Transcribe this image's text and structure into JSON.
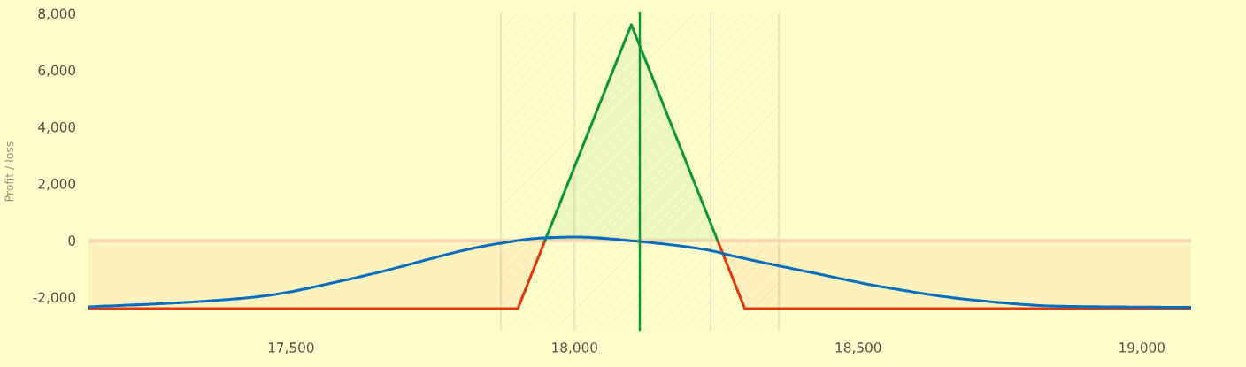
{
  "chart_data": {
    "type": "line",
    "ylabel": "Profit / loss",
    "xlim": [
      17143,
      19087
    ],
    "ylim": [
      -3150,
      8000
    ],
    "xticks": [
      {
        "value": 17500,
        "label": "17,500"
      },
      {
        "value": 18000,
        "label": "18,000"
      },
      {
        "value": 18500,
        "label": "18,500"
      },
      {
        "value": 19000,
        "label": "19,000"
      }
    ],
    "yticks": [
      {
        "value": -2000,
        "label": "-2,000"
      },
      {
        "value": 0,
        "label": "0"
      },
      {
        "value": 2000,
        "label": "2,000"
      },
      {
        "value": 4000,
        "label": "4,000"
      },
      {
        "value": 6000,
        "label": "6,000"
      },
      {
        "value": 8000,
        "label": "8,000"
      }
    ],
    "grid": false,
    "legend": false,
    "series": [
      {
        "type": "area",
        "color": "#e03a10",
        "x": [
          17143,
          17900,
          17948,
          18100,
          18252,
          18300,
          19087
        ],
        "values": [
          -2400,
          -2400,
          0,
          null,
          0,
          -2400,
          -2400
        ]
      },
      {
        "type": "area",
        "color": "#11963c",
        "x": [
          17948,
          18100,
          18252
        ],
        "values": [
          0,
          7600,
          0
        ]
      },
      {
        "color": "#0a6ebd",
        "x": [
          17143,
          17299,
          17377,
          17455,
          17595,
          17689,
          17736,
          17798,
          17860,
          17946,
          18001,
          18110,
          18235,
          18282,
          18422,
          18547,
          18703,
          18859,
          19087
        ],
        "values": [
          -2340,
          -2200,
          -2100,
          -1950,
          -1400,
          -950,
          -700,
          -380,
          -130,
          90,
          120,
          -30,
          -340,
          -560,
          -1150,
          -1650,
          -2100,
          -2320,
          -2360
        ]
      }
    ],
    "ref_lines": [
      {
        "axis": "y",
        "value": 0,
        "color": "#fadcb8"
      },
      {
        "axis": "x",
        "value": 17870,
        "color": "#f3dcbc"
      },
      {
        "axis": "x",
        "value": 18000,
        "color": "#f3dcbc"
      },
      {
        "axis": "x",
        "value": 18240,
        "color": "#f3dcbc"
      },
      {
        "axis": "x",
        "value": 18360,
        "color": "#f3dcbc"
      },
      {
        "axis": "x",
        "value": 18115,
        "color": "#11963c"
      }
    ],
    "bands": [
      {
        "axis": "x",
        "from": 17870,
        "to": 18360,
        "color": "#f6e6c0"
      }
    ]
  }
}
